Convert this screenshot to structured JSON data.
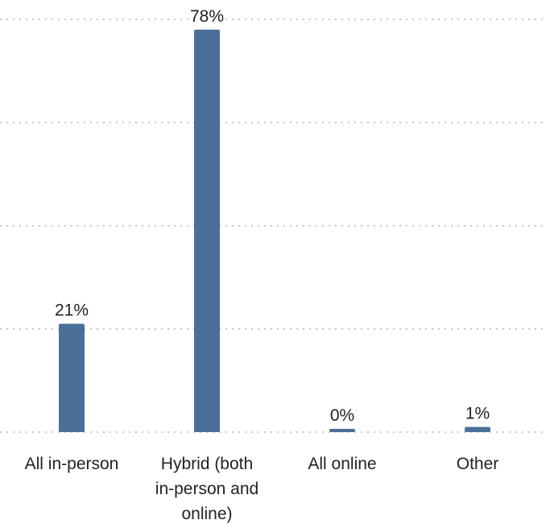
{
  "chart_data": {
    "type": "bar",
    "categories": [
      [
        "All in-person"
      ],
      [
        "Hybrid (both",
        "in-person and",
        "online)"
      ],
      [
        "All online"
      ],
      [
        "Other"
      ]
    ],
    "values": [
      21,
      78,
      0,
      1
    ],
    "value_labels": [
      "21%",
      "78%",
      "0%",
      "1%"
    ],
    "ylim": [
      0,
      80
    ],
    "y_gridlines": [
      0,
      20,
      40,
      60,
      80
    ],
    "grid": "horizontal dotted",
    "bar_color": "#4a6f99",
    "grid_color": "#c8c8c8",
    "title": "",
    "xlabel": "",
    "ylabel": ""
  }
}
